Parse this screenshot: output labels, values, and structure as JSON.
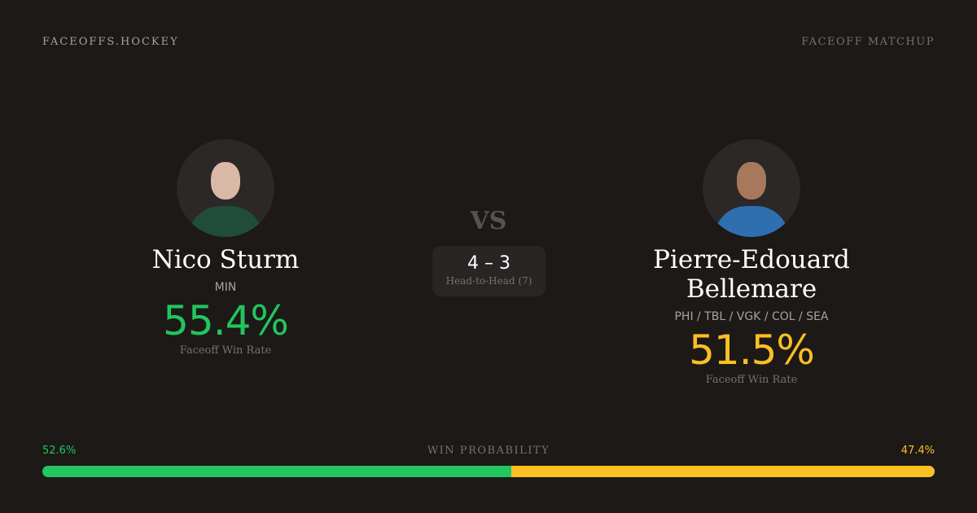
{
  "brand": "FACEOFFS.HOCKEY",
  "tag": "FACEOFF MATCHUP",
  "vs": "VS",
  "h2h": {
    "score": "4 – 3",
    "label": "Head-to-Head (7)"
  },
  "players": [
    {
      "name": "Nico Sturm",
      "team": "MIN",
      "win_rate": "55.4%",
      "win_rate_label": "Faceoff Win Rate",
      "color": "#22c55e"
    },
    {
      "name": "Pierre-Edouard Bellemare",
      "team": "PHI / TBL / VGK / COL / SEA",
      "win_rate": "51.5%",
      "win_rate_label": "Faceoff Win Rate",
      "color": "#fbbf24"
    }
  ],
  "win_probability": {
    "label": "WIN PROBABILITY",
    "left": "52.6%",
    "right": "47.4%",
    "left_value": 52.6,
    "right_value": 47.4
  }
}
